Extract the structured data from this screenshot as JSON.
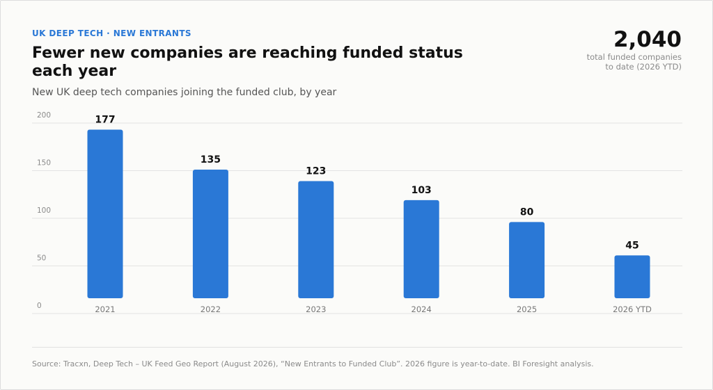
{
  "header": {
    "eyebrow": "UK DEEP TECH · NEW ENTRANTS",
    "title": "Fewer new companies are reaching funded status each year",
    "subtitle": "New UK deep tech companies joining the funded club, by year"
  },
  "kpi": {
    "value": "2,040",
    "label": "total funded companies to date (2026 YTD)"
  },
  "footer": {
    "source": "Source: Tracxn, Deep Tech – UK Feed Geo Report (August 2026), “New Entrants to Funded Club”. 2026 figure is year-to-date. BI Foresight analysis."
  },
  "colors": {
    "accent": "#2a78d6",
    "bar": "#2a78d6",
    "grid": "#e3e3e3",
    "tick": "#8a8a8a"
  },
  "chart_data": {
    "type": "bar",
    "categories": [
      "2021",
      "2022",
      "2023",
      "2024",
      "2025",
      "2026 YTD"
    ],
    "values": [
      177,
      135,
      123,
      103,
      80,
      45
    ],
    "data_labels": [
      "177",
      "135",
      "123",
      "103",
      "80",
      "45"
    ],
    "yticks": [
      0,
      50,
      100,
      150,
      200
    ],
    "ylim": [
      0,
      200
    ],
    "grid": true,
    "legend": "none"
  }
}
